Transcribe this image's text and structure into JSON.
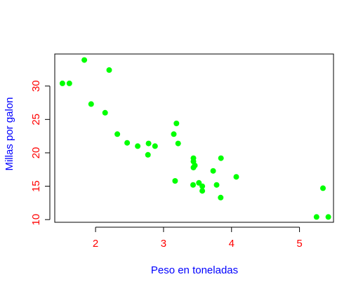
{
  "chart_data": {
    "type": "scatter",
    "title": "",
    "xlabel": "Peso en toneladas",
    "ylabel": "Millas por galon",
    "xlim": [
      1.4,
      5.5
    ],
    "ylim": [
      9.6,
      34.8
    ],
    "x_ticks": [
      2,
      3,
      4,
      5
    ],
    "y_ticks": [
      10,
      15,
      20,
      25,
      30
    ],
    "x_tick_labels": [
      "2",
      "3",
      "4",
      "5"
    ],
    "y_tick_labels": [
      "10",
      "15",
      "20",
      "25",
      "30"
    ],
    "grid": false,
    "legend": "none",
    "colors": {
      "points": "#00ff00",
      "tick_labels": "#ff0000",
      "axis_titles": "#0000ff",
      "axes": "#000000"
    },
    "points": [
      {
        "x": 2.62,
        "y": 21.0
      },
      {
        "x": 2.875,
        "y": 21.0
      },
      {
        "x": 2.32,
        "y": 22.8
      },
      {
        "x": 3.215,
        "y": 21.4
      },
      {
        "x": 3.44,
        "y": 18.7
      },
      {
        "x": 3.46,
        "y": 18.1
      },
      {
        "x": 3.57,
        "y": 14.3
      },
      {
        "x": 3.19,
        "y": 24.4
      },
      {
        "x": 3.15,
        "y": 22.8
      },
      {
        "x": 3.44,
        "y": 19.2
      },
      {
        "x": 3.44,
        "y": 17.8
      },
      {
        "x": 4.07,
        "y": 16.4
      },
      {
        "x": 3.73,
        "y": 17.3
      },
      {
        "x": 3.78,
        "y": 15.2
      },
      {
        "x": 5.25,
        "y": 10.4
      },
      {
        "x": 5.424,
        "y": 10.4
      },
      {
        "x": 5.345,
        "y": 14.7
      },
      {
        "x": 2.2,
        "y": 32.4
      },
      {
        "x": 1.615,
        "y": 30.4
      },
      {
        "x": 1.835,
        "y": 33.9
      },
      {
        "x": 2.465,
        "y": 21.5
      },
      {
        "x": 3.52,
        "y": 15.5
      },
      {
        "x": 3.435,
        "y": 15.2
      },
      {
        "x": 3.84,
        "y": 13.3
      },
      {
        "x": 3.845,
        "y": 19.2
      },
      {
        "x": 1.935,
        "y": 27.3
      },
      {
        "x": 2.14,
        "y": 26.0
      },
      {
        "x": 1.513,
        "y": 30.4
      },
      {
        "x": 3.17,
        "y": 15.8
      },
      {
        "x": 2.77,
        "y": 19.7
      },
      {
        "x": 3.57,
        "y": 15.0
      },
      {
        "x": 2.78,
        "y": 21.4
      }
    ]
  }
}
